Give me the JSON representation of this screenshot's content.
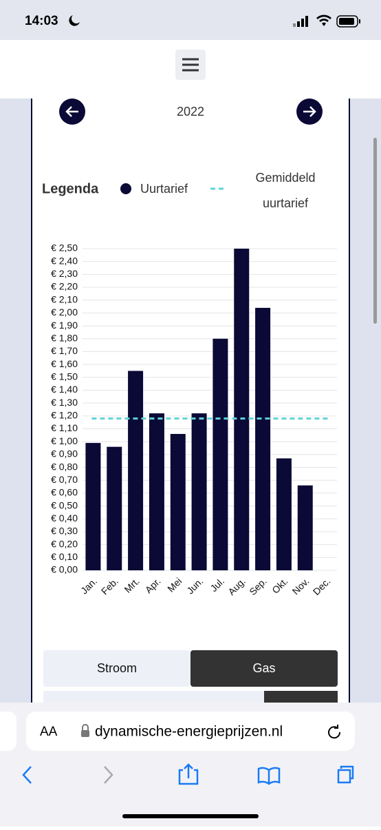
{
  "status_bar": {
    "time": "14:03"
  },
  "navigation": {
    "year": "2022"
  },
  "chart_data": {
    "type": "bar",
    "legend_title": "Legenda",
    "categories": [
      "Jan.",
      "Feb.",
      "Mrt.",
      "Apr.",
      "Mei",
      "Jun.",
      "Jul.",
      "Aug.",
      "Sep.",
      "Okt.",
      "Nov.",
      "Dec."
    ],
    "series": [
      {
        "name": "Uurtarief",
        "color": "#0b0a36",
        "values": [
          0.99,
          0.96,
          1.55,
          1.22,
          1.06,
          1.22,
          1.8,
          2.5,
          2.04,
          0.87,
          0.66,
          null
        ]
      }
    ],
    "average": {
      "name": "Gemiddeld uurtarief",
      "value": 1.18,
      "color": "#5fd3d8"
    },
    "ylim": [
      0,
      2.5
    ],
    "yticks": [
      {
        "value": 0,
        "label": "€ 0,00"
      },
      {
        "value": 0.1,
        "label": "€ 0,10"
      },
      {
        "value": 0.2,
        "label": "€ 0,20"
      },
      {
        "value": 0.3,
        "label": "€ 0,30"
      },
      {
        "value": 0.4,
        "label": "€ 0,40"
      },
      {
        "value": 0.5,
        "label": "€ 0,50"
      },
      {
        "value": 0.6,
        "label": "€ 0,60"
      },
      {
        "value": 0.7,
        "label": "€ 0,70"
      },
      {
        "value": 0.8,
        "label": "€ 0,80"
      },
      {
        "value": 0.9,
        "label": "€ 0,90"
      },
      {
        "value": 1.0,
        "label": "€ 1,00"
      },
      {
        "value": 1.1,
        "label": "€ 1,10"
      },
      {
        "value": 1.2,
        "label": "€ 1,20"
      },
      {
        "value": 1.3,
        "label": "€ 1,30"
      },
      {
        "value": 1.4,
        "label": "€ 1,40"
      },
      {
        "value": 1.5,
        "label": "€ 1,50"
      },
      {
        "value": 1.6,
        "label": "€ 1,60"
      },
      {
        "value": 1.7,
        "label": "€ 1,70"
      },
      {
        "value": 1.8,
        "label": "€ 1,80"
      },
      {
        "value": 1.9,
        "label": "€ 1,90"
      },
      {
        "value": 2.0,
        "label": "€ 2,00"
      },
      {
        "value": 2.1,
        "label": "€ 2,10"
      },
      {
        "value": 2.2,
        "label": "€ 2,20"
      },
      {
        "value": 2.3,
        "label": "€ 2,30"
      },
      {
        "value": 2.4,
        "label": "€ 2,40"
      },
      {
        "value": 2.5,
        "label": "€ 2,50"
      }
    ],
    "grid": true
  },
  "toggle": {
    "options": [
      "Stroom",
      "Gas"
    ]
  },
  "browser": {
    "text_size": "AA",
    "url": "dynamische-energieprijzen.nl"
  }
}
